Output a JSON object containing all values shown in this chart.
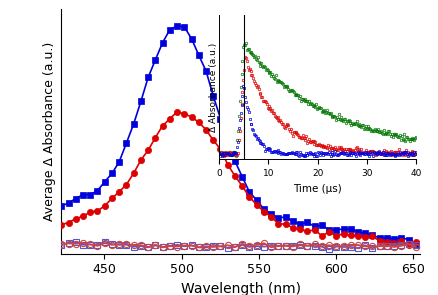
{
  "main": {
    "xlim": [
      422,
      655
    ],
    "xlabel": "Wavelength (nm)",
    "ylabel": "Average Δ Absorbance (a.u.)",
    "xlabel_fontsize": 10,
    "ylabel_fontsize": 9,
    "tick_fontsize": 9,
    "blue_solid_color": "#0000dd",
    "red_solid_color": "#dd0000",
    "blue_open_color": "#5555cc",
    "red_open_color": "#cc4444"
  },
  "inset": {
    "xlim": [
      0,
      40
    ],
    "xlabel": "Time (μs)",
    "ylabel": "Δ Absorbance (a.u.)",
    "xlabel_fontsize": 7.5,
    "ylabel_fontsize": 6.5,
    "tick_fontsize": 6.5,
    "blue_color": "#0000dd",
    "red_color": "#dd0000",
    "green_color": "#007700"
  },
  "blue_solid_seed": 42,
  "red_solid_seed": 43,
  "blue_open_seed": 44,
  "red_open_seed": 45
}
